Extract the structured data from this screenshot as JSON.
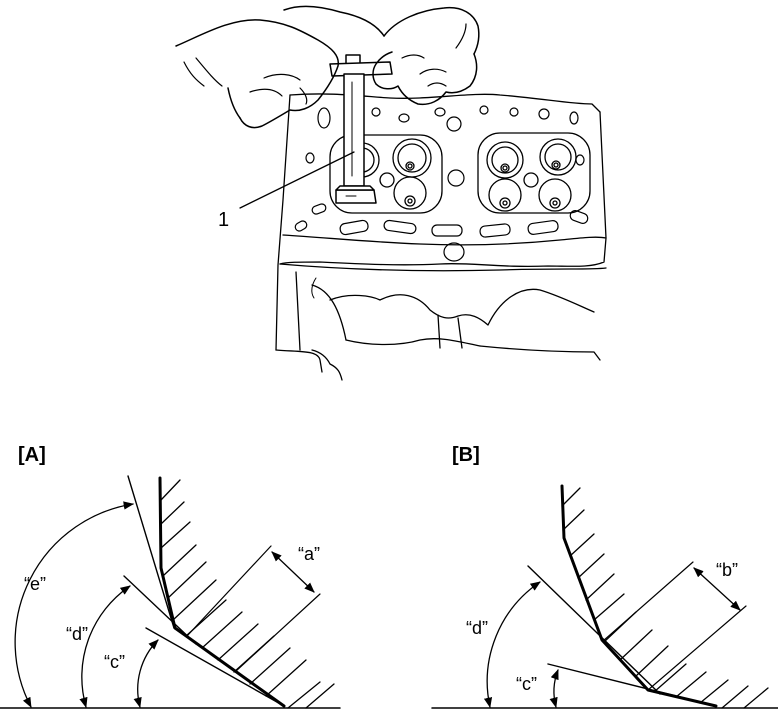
{
  "top_illustration": {
    "callout": "1"
  },
  "panel_a": {
    "title": "[A]",
    "dims": [
      "“a”"
    ],
    "angles": [
      "“e”",
      "“d”",
      "“c”"
    ]
  },
  "panel_b": {
    "title": "[B]",
    "dims": [
      "“b”"
    ],
    "angles": [
      "“d”",
      "“c”"
    ]
  }
}
